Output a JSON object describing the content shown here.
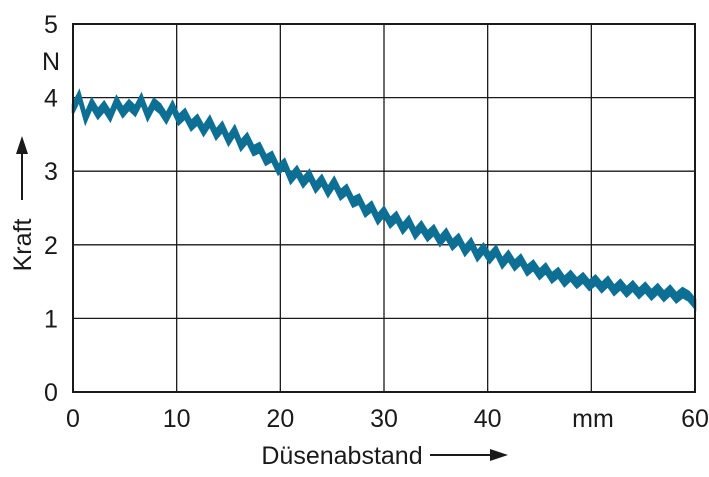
{
  "chart_data": {
    "type": "line",
    "title": "",
    "xlabel": "Düsenabstand",
    "ylabel": "Kraft",
    "x_unit": "mm",
    "y_unit": "N",
    "xlim": [
      0,
      60
    ],
    "ylim": [
      0,
      5
    ],
    "x_ticks": [
      0,
      10,
      20,
      30,
      40,
      60
    ],
    "y_ticks": [
      0,
      1,
      2,
      3,
      4,
      5
    ],
    "grid": true,
    "legend": "none",
    "series": [
      {
        "color": "#0d6f94",
        "band_width": 0.12,
        "x": [
          0,
          0.6,
          1.2,
          1.8,
          2.4,
          3,
          3.6,
          4.2,
          4.8,
          5.4,
          6,
          6.6,
          7.2,
          7.8,
          8.4,
          9,
          9.6,
          10.2,
          10.8,
          11.4,
          12,
          12.6,
          13.2,
          13.8,
          14.4,
          15,
          15.6,
          16.2,
          16.8,
          17.4,
          18,
          18.6,
          19.2,
          19.8,
          20.4,
          21,
          21.6,
          22.2,
          22.8,
          23.4,
          24,
          24.6,
          25.2,
          25.8,
          26.4,
          27,
          27.6,
          28.2,
          28.8,
          29.4,
          30,
          30.6,
          31.2,
          31.8,
          32.4,
          33,
          33.6,
          34.2,
          34.8,
          35.4,
          36,
          36.6,
          37.2,
          37.8,
          38.4,
          39,
          39.6,
          40.2,
          40.8,
          41.4,
          42,
          42.6,
          43.2,
          43.8,
          44.4,
          45,
          45.6,
          46.2,
          46.8,
          47.4,
          48,
          48.6,
          49.2,
          49.8,
          50.4,
          51,
          51.6,
          52.2,
          52.8,
          53.4,
          54,
          54.6,
          55.2,
          55.8,
          56.4,
          57,
          57.6,
          58.2,
          58.8,
          59.4,
          60
        ],
        "y": [
          3.85,
          4.02,
          3.72,
          3.92,
          3.78,
          3.88,
          3.75,
          3.95,
          3.8,
          3.9,
          3.82,
          3.98,
          3.76,
          3.92,
          3.85,
          3.72,
          3.88,
          3.7,
          3.78,
          3.62,
          3.7,
          3.55,
          3.68,
          3.5,
          3.6,
          3.42,
          3.55,
          3.35,
          3.45,
          3.28,
          3.32,
          3.15,
          3.2,
          3.02,
          3.1,
          2.9,
          3.0,
          2.85,
          2.95,
          2.78,
          2.88,
          2.72,
          2.85,
          2.68,
          2.75,
          2.58,
          2.62,
          2.45,
          2.52,
          2.35,
          2.45,
          2.3,
          2.38,
          2.22,
          2.32,
          2.15,
          2.25,
          2.12,
          2.2,
          2.05,
          2.15,
          2.0,
          2.08,
          1.92,
          2.02,
          1.85,
          1.95,
          1.82,
          1.92,
          1.75,
          1.85,
          1.72,
          1.8,
          1.65,
          1.72,
          1.6,
          1.68,
          1.55,
          1.62,
          1.5,
          1.58,
          1.48,
          1.55,
          1.45,
          1.52,
          1.42,
          1.5,
          1.38,
          1.46,
          1.36,
          1.44,
          1.34,
          1.42,
          1.32,
          1.4,
          1.3,
          1.38,
          1.28,
          1.35,
          1.3,
          1.2
        ]
      }
    ]
  }
}
